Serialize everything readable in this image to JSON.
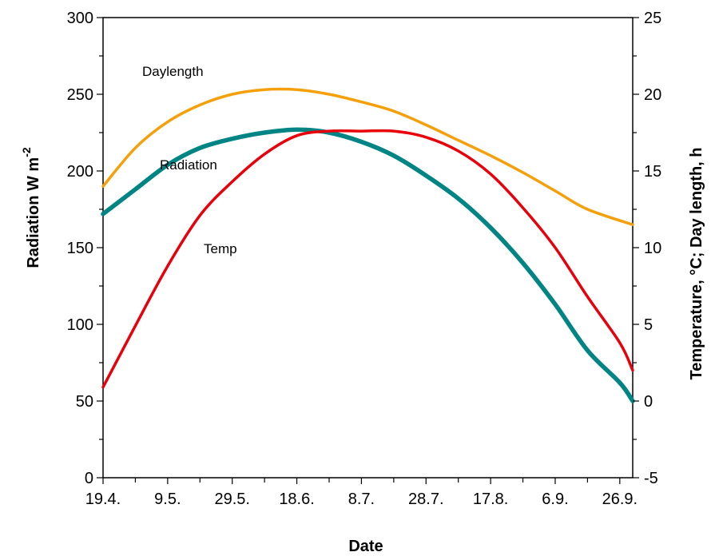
{
  "chart_data": {
    "type": "line",
    "xlabel": "Date",
    "ylabel_left": "Radiation W m",
    "ylabel_left_sup": "-2",
    "ylabel_right": "Temperature, °C; Day length, h",
    "x_ticks": [
      "19.4.",
      "9.5.",
      "29.5.",
      "18.6.",
      "8.7.",
      "28.7.",
      "17.8.",
      "6.9.",
      "26.9."
    ],
    "x_tick_days": [
      0,
      20,
      40,
      60,
      80,
      100,
      120,
      140,
      160
    ],
    "xlim": [
      0,
      164
    ],
    "ylim_left": [
      0,
      300
    ],
    "yticks_left": [
      0,
      50,
      100,
      150,
      200,
      250,
      300
    ],
    "ylim_right": [
      -5,
      25
    ],
    "yticks_right": [
      -5,
      0,
      5,
      10,
      15,
      20,
      25
    ],
    "series": [
      {
        "name": "Daylength",
        "axis": "right",
        "color": "#f5a00a",
        "x": [
          0,
          10,
          20,
          30,
          40,
          50,
          60,
          70,
          80,
          90,
          100,
          110,
          120,
          130,
          140,
          150,
          164
        ],
        "values": [
          14.0,
          16.5,
          18.2,
          19.3,
          20.0,
          20.3,
          20.3,
          20.0,
          19.5,
          18.9,
          18.0,
          17.0,
          16.0,
          14.9,
          13.7,
          12.5,
          11.5
        ]
      },
      {
        "name": "Radiation",
        "axis": "left",
        "color": "#008484",
        "x": [
          0,
          10,
          20,
          30,
          40,
          50,
          60,
          70,
          80,
          90,
          100,
          110,
          120,
          130,
          140,
          150,
          160,
          164
        ],
        "values": [
          172,
          188,
          204,
          215,
          221,
          225,
          227,
          225,
          219,
          210,
          197,
          182,
          163,
          140,
          113,
          83,
          62,
          50
        ]
      },
      {
        "name": "Temp",
        "axis": "right",
        "color": "#e8000b",
        "x": [
          0,
          10,
          20,
          30,
          40,
          50,
          60,
          70,
          80,
          90,
          100,
          110,
          120,
          130,
          140,
          150,
          160,
          164
        ],
        "values": [
          0.9,
          4.9,
          8.8,
          12.1,
          14.3,
          16.1,
          17.3,
          17.6,
          17.6,
          17.6,
          17.2,
          16.3,
          14.8,
          12.6,
          10.0,
          6.8,
          3.8,
          2.0
        ]
      }
    ],
    "labels": {
      "daylength": "Daylength",
      "radiation": "Radiation",
      "temp": "Temp"
    }
  }
}
